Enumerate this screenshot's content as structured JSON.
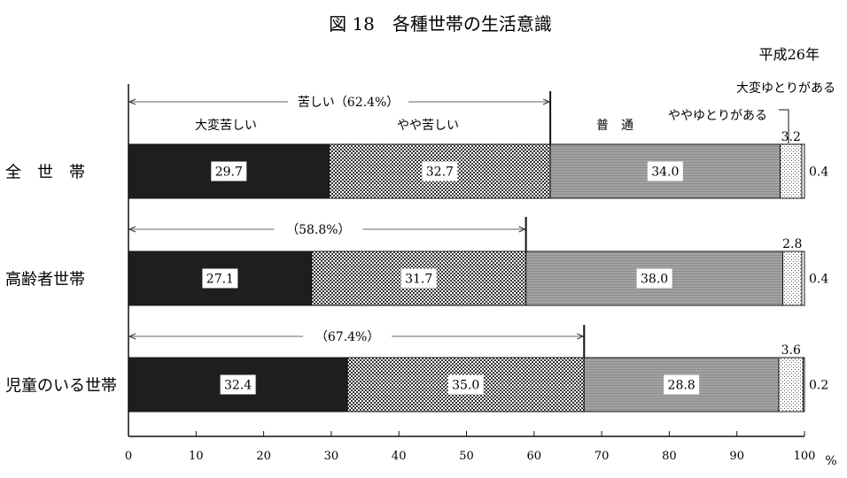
{
  "chart_data": {
    "type": "bar",
    "stacked": true,
    "orientation": "horizontal",
    "title": "図 18　各種世帯の生活意識",
    "year_note": "平成26年",
    "unit": "%",
    "xlim": [
      0,
      100
    ],
    "x_ticks": [
      0,
      10,
      20,
      30,
      40,
      50,
      60,
      70,
      80,
      90,
      100
    ],
    "categories": [
      "全　世　帯",
      "高齢者世帯",
      "児童のいる世帯"
    ],
    "series": [
      {
        "name": "大変苦しい",
        "values": [
          29.7,
          27.1,
          32.4
        ],
        "pattern": "solid-black"
      },
      {
        "name": "やや苦しい",
        "values": [
          32.7,
          31.7,
          35.0
        ],
        "pattern": "checker"
      },
      {
        "name": "普　通",
        "values": [
          34.0,
          38.0,
          28.8
        ],
        "pattern": "gray-lines"
      },
      {
        "name": "ややゆとりがある",
        "values": [
          3.2,
          2.8,
          3.6
        ],
        "pattern": "dots"
      },
      {
        "name": "大変ゆとりがある",
        "values": [
          0.4,
          0.4,
          0.2
        ],
        "pattern": "white"
      }
    ],
    "value_labels": [
      [
        "29.7",
        "32.7",
        "34.0",
        "3.2",
        "0.4"
      ],
      [
        "27.1",
        "31.7",
        "38.0",
        "2.8",
        "0.4"
      ],
      [
        "32.4",
        "35.0",
        "28.8",
        "3.6",
        "0.2"
      ]
    ],
    "bracket_labels": [
      "苦しい（62.4%）",
      "（58.8%）",
      "（67.4%）"
    ],
    "bracket_values": [
      62.4,
      58.8,
      67.4
    ],
    "grid": false,
    "colors": {
      "solid": "#1e1e1e",
      "checker_dark": "#333333",
      "gray": "#9a9a9a",
      "frame": "#111111"
    }
  }
}
